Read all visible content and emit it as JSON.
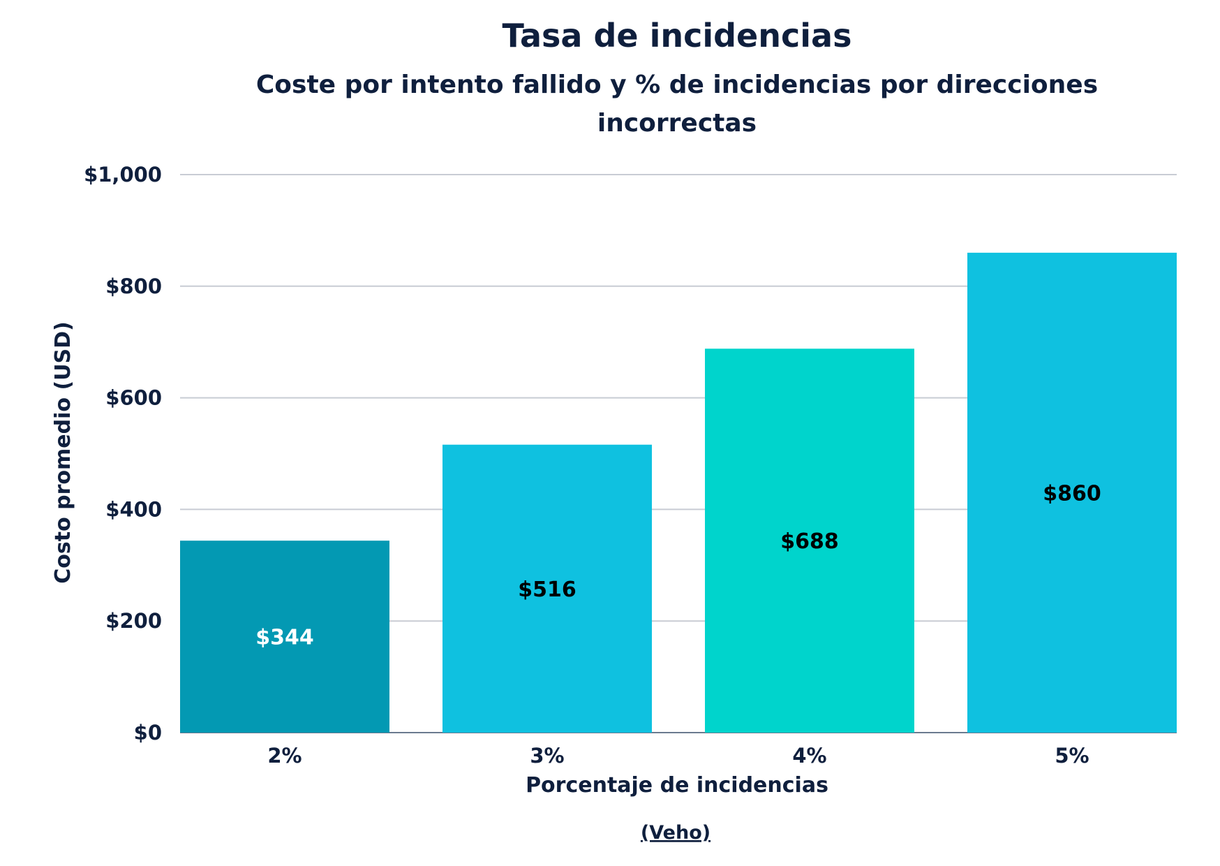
{
  "chart_data": {
    "type": "bar",
    "title": "Tasa de incidencias",
    "subtitle_lines": [
      "Coste por intento fallido y % de incidencias por direcciones",
      "incorrectas"
    ],
    "xlabel": "Porcentaje de incidencias",
    "ylabel": "Costo promedio (USD)",
    "categories": [
      "2%",
      "3%",
      "4%",
      "5%"
    ],
    "values": [
      344,
      516,
      688,
      860
    ],
    "value_labels": [
      "$344",
      "$516",
      "$688",
      "$860"
    ],
    "bar_colors": [
      "#0399b3",
      "#0fc1e0",
      "#00d4cc",
      "#0fc1e0"
    ],
    "label_colors": [
      "#ffffff",
      "#000000",
      "#000000",
      "#000000"
    ],
    "ylim": [
      0,
      1000
    ],
    "yticks": [
      0,
      200,
      400,
      600,
      800,
      1000
    ],
    "ytick_labels": [
      "$0",
      "$200",
      "$400",
      "$600",
      "$800",
      "$1,000"
    ],
    "grid": true,
    "legend": "none",
    "source": "(Veho)"
  },
  "colors": {
    "text": "#0f1f3d",
    "grid": "#c8ccd4"
  }
}
